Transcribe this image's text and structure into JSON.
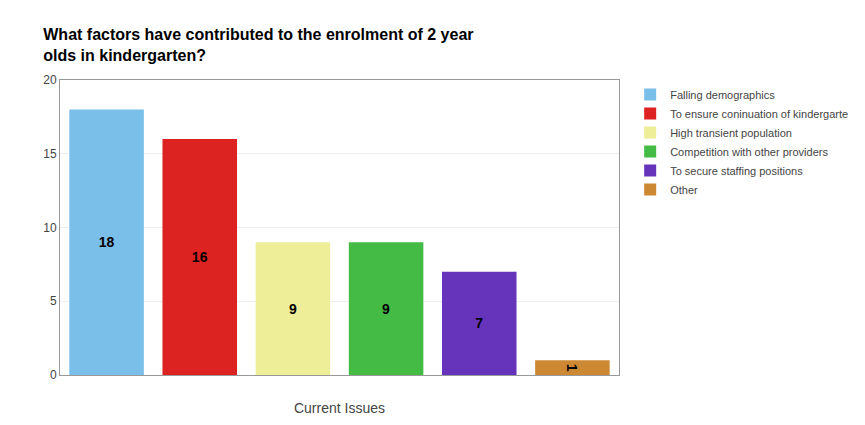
{
  "chart_data": {
    "type": "bar",
    "title": "What factors have contributed to the enrolment of 2 year\nolds in kindergarten?",
    "xlabel": "Current Issues",
    "categories": [
      "Falling demographics",
      "To ensure coninuation of kindergarte",
      "High transient population",
      "Competition with other providers",
      "To secure staffing positions",
      "Other"
    ],
    "values": [
      18,
      16,
      9,
      9,
      7,
      1
    ],
    "colors": [
      "#7ABFEA",
      "#DD2222",
      "#EEEE99",
      "#44BB44",
      "#6633BB",
      "#CC8833"
    ],
    "ylim": [
      0,
      20
    ],
    "yticks": [
      0,
      5,
      10,
      15,
      20
    ],
    "grid": true,
    "data_labels": true,
    "tick_labels": "y",
    "legend": "right"
  }
}
